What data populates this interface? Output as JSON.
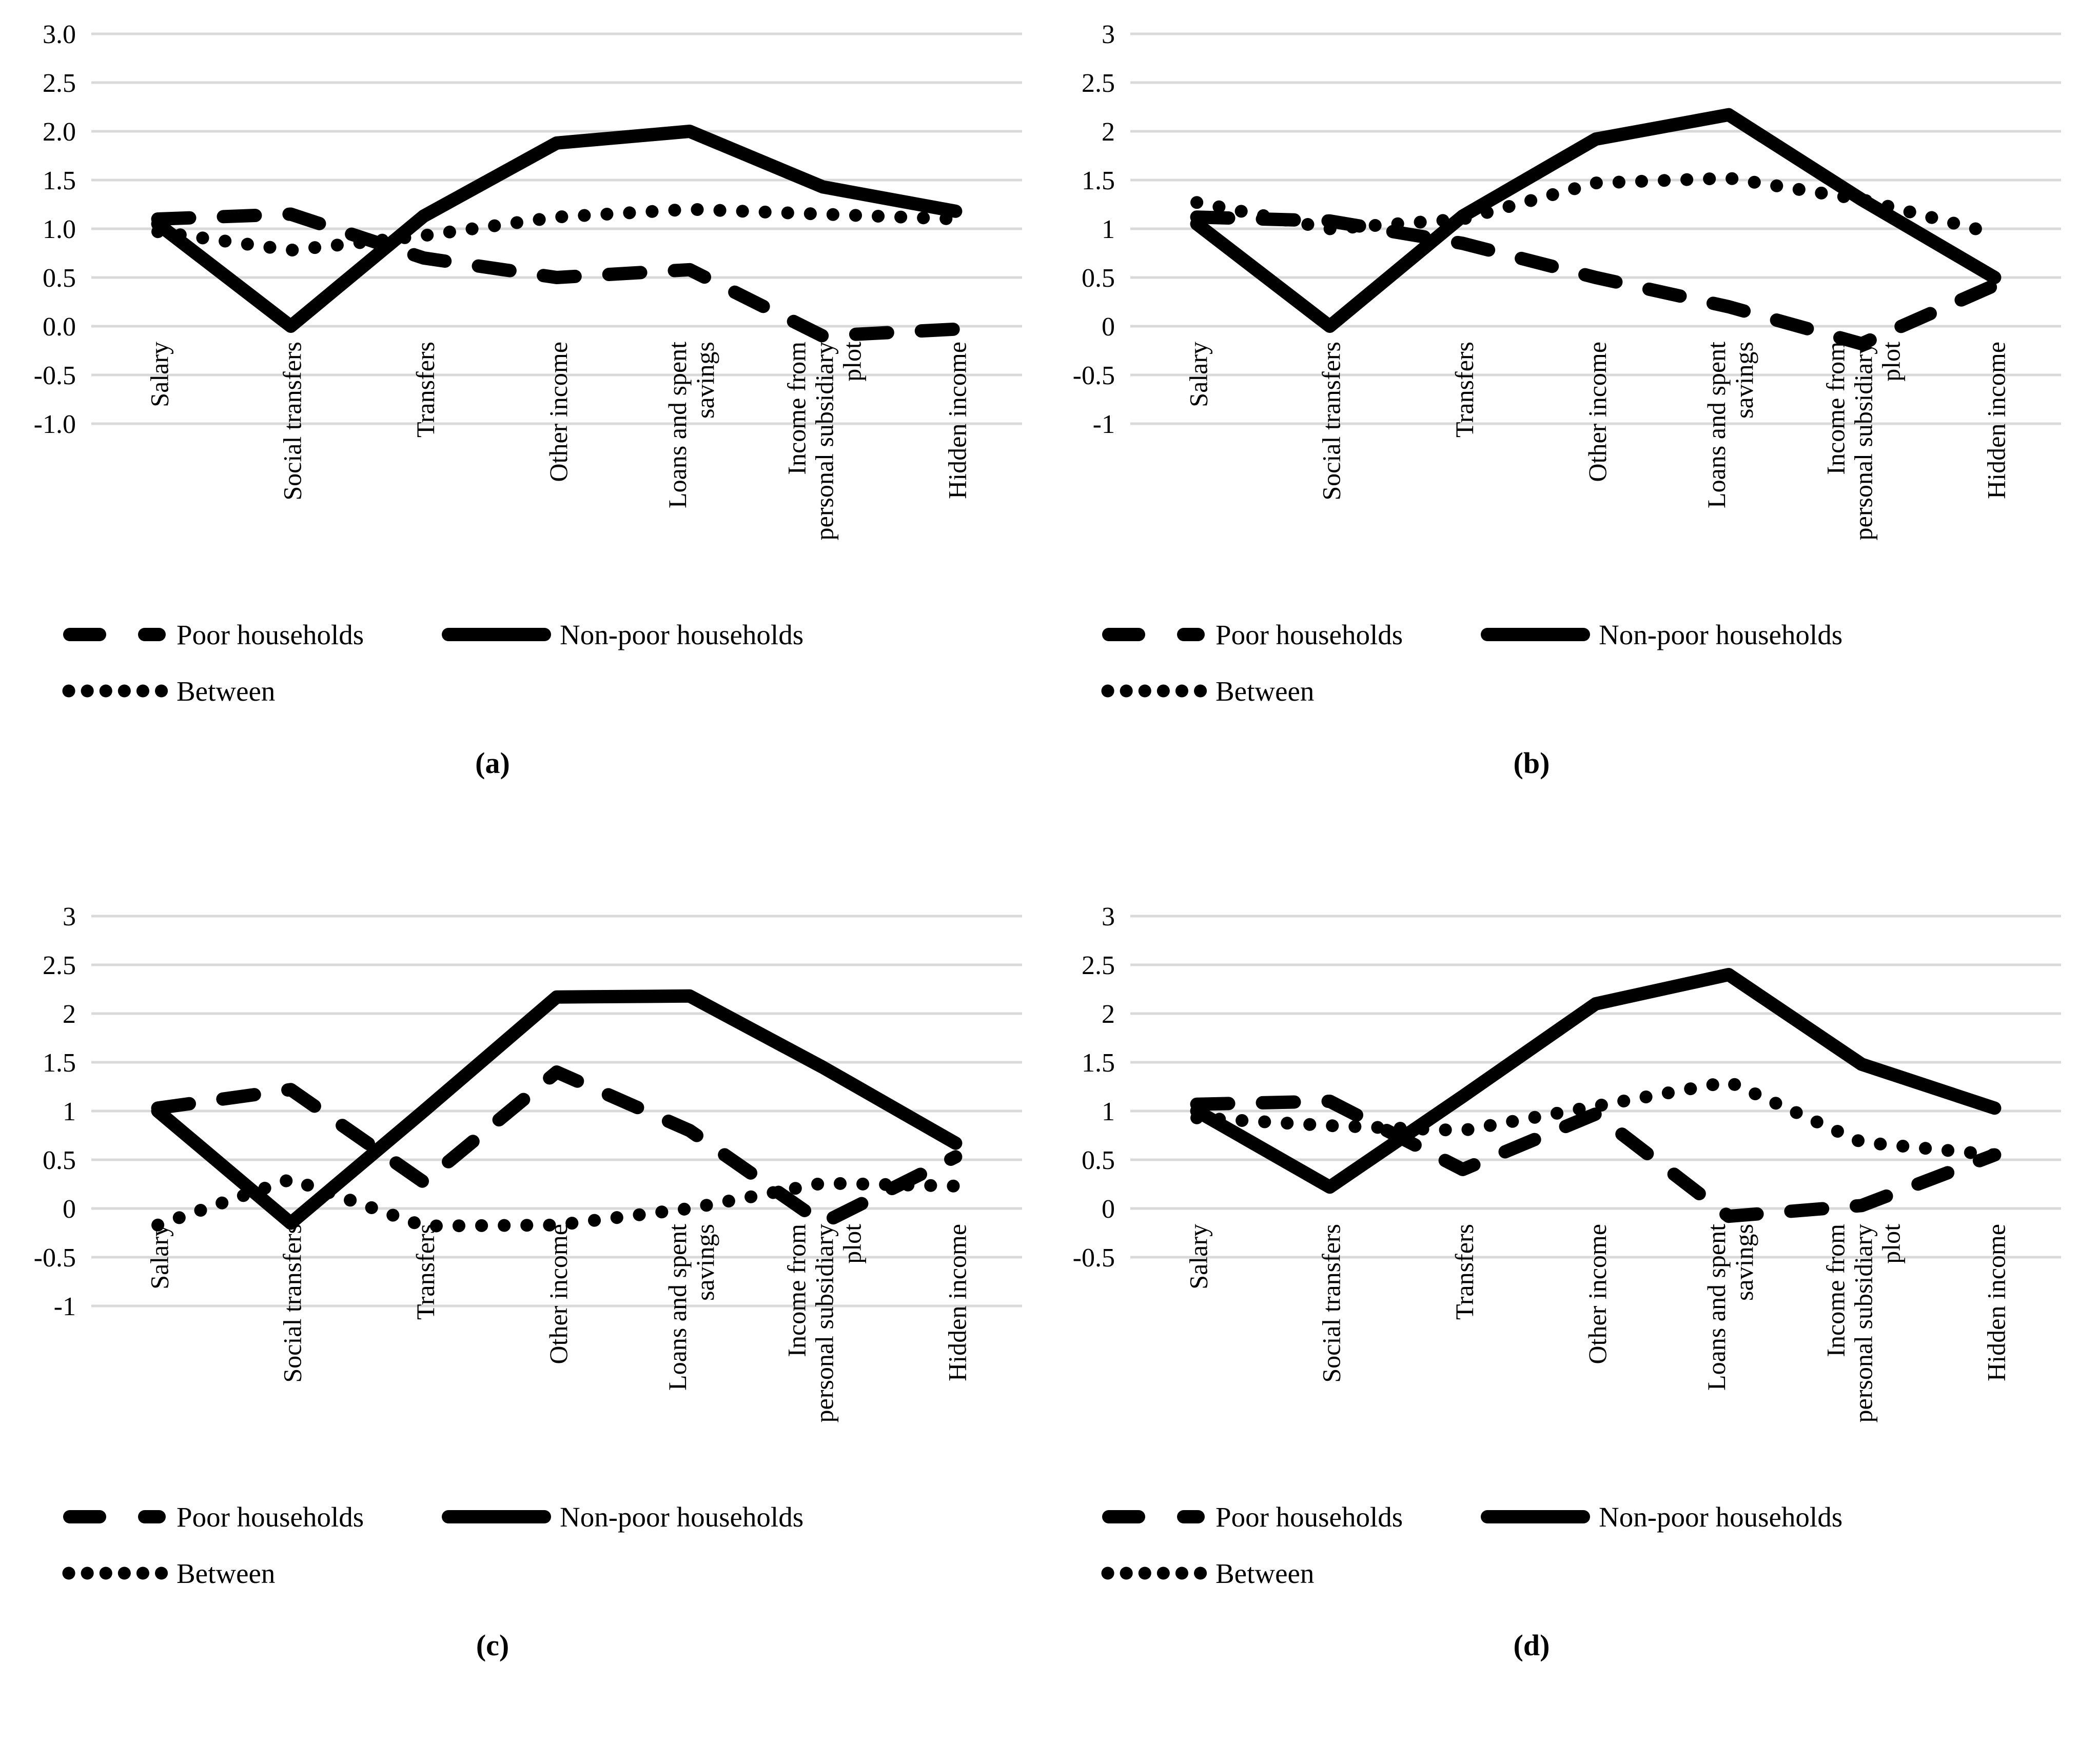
{
  "chart_data": {
    "type": "line",
    "grid": true,
    "legend_position": "below",
    "categories": [
      "Salary",
      "Social transfers",
      "Transfers",
      "Other income",
      "Loans and spent savings",
      "Income from personal subsidiary plot",
      "Hidden income"
    ],
    "category_lines": [
      [
        "Salary"
      ],
      [
        "Social transfers"
      ],
      [
        "Transfers"
      ],
      [
        "Other income"
      ],
      [
        "Loans and spent",
        "savings"
      ],
      [
        "Income from",
        "personal subsidiary",
        "plot"
      ],
      [
        "Hidden income"
      ]
    ],
    "colors": {
      "series": "#000000",
      "gridline": "#d9d9d9",
      "background": "#ffffff"
    },
    "charts": [
      {
        "panel_label": "(a)",
        "y_ticks": [
          "3.0",
          "2.5",
          "2.0",
          "1.5",
          "1.0",
          "0.5",
          "0.0",
          "-0.5",
          "-1.0"
        ],
        "ylim": [
          -1.0,
          3.0
        ],
        "series": [
          {
            "name": "Poor households",
            "style": "dashed",
            "values": [
              1.1,
              1.15,
              0.7,
              0.5,
              0.58,
              -0.1,
              -0.03
            ]
          },
          {
            "name": "Non-poor households",
            "style": "solid",
            "values": [
              1.05,
              0.0,
              1.13,
              1.88,
              2.0,
              1.43,
              1.18
            ]
          },
          {
            "name": "Between",
            "style": "dotted",
            "values": [
              0.97,
              0.78,
              0.93,
              1.12,
              1.2,
              1.15,
              1.1
            ]
          }
        ]
      },
      {
        "panel_label": "(b)",
        "y_ticks": [
          "3",
          "2.5",
          "2",
          "1.5",
          "1",
          "0.5",
          "0",
          "-0.5",
          "-1"
        ],
        "ylim": [
          -1.0,
          3.0
        ],
        "series": [
          {
            "name": "Poor households",
            "style": "dashed",
            "values": [
              1.12,
              1.08,
              0.85,
              0.5,
              0.2,
              -0.18,
              0.42
            ]
          },
          {
            "name": "Non-poor households",
            "style": "solid",
            "values": [
              1.05,
              0.0,
              1.13,
              1.92,
              2.17,
              1.3,
              0.5
            ]
          },
          {
            "name": "Between",
            "style": "dotted",
            "values": [
              1.27,
              1.0,
              1.1,
              1.47,
              1.52,
              1.3,
              0.95
            ]
          }
        ]
      },
      {
        "panel_label": "(c)",
        "y_ticks": [
          "3",
          "2.5",
          "2",
          "1.5",
          "1",
          "0.5",
          "0",
          "-0.5",
          "-1"
        ],
        "ylim": [
          -1.0,
          3.0
        ],
        "series": [
          {
            "name": "Poor households",
            "style": "dashed",
            "values": [
              1.03,
              1.22,
              0.27,
              1.4,
              0.8,
              -0.15,
              0.53
            ]
          },
          {
            "name": "Non-poor households",
            "style": "solid",
            "values": [
              1.0,
              -0.15,
              1.0,
              2.17,
              2.18,
              1.45,
              0.67
            ]
          },
          {
            "name": "Between",
            "style": "dotted",
            "values": [
              -0.17,
              0.3,
              -0.18,
              -0.17,
              0.0,
              0.26,
              0.23
            ]
          }
        ]
      },
      {
        "panel_label": "(d)",
        "y_ticks": [
          "3",
          "2.5",
          "2",
          "1.5",
          "1",
          "0.5",
          "0",
          "-0.5"
        ],
        "ylim": [
          -0.5,
          3.0
        ],
        "series": [
          {
            "name": "Poor households",
            "style": "dashed",
            "values": [
              1.07,
              1.1,
              0.4,
              0.97,
              -0.08,
              0.03,
              0.55
            ]
          },
          {
            "name": "Non-poor households",
            "style": "solid",
            "values": [
              1.0,
              0.22,
              1.15,
              2.1,
              2.4,
              1.48,
              1.03
            ]
          },
          {
            "name": "Between",
            "style": "dotted",
            "values": [
              0.93,
              0.85,
              0.8,
              1.05,
              1.3,
              0.68,
              0.55
            ]
          }
        ]
      }
    ]
  }
}
